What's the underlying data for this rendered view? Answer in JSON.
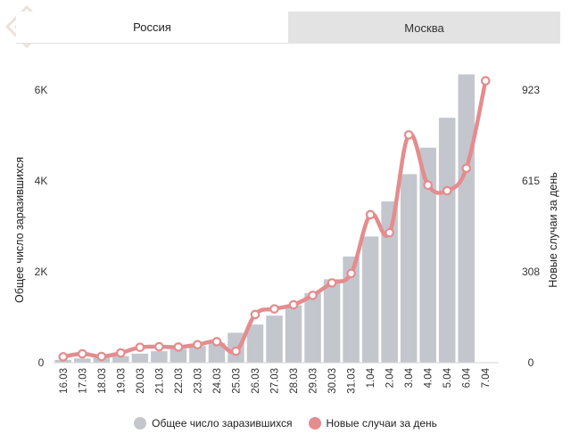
{
  "tabs": [
    {
      "label": "Россия",
      "active": true
    },
    {
      "label": "Москва",
      "active": false
    }
  ],
  "colors": {
    "bars": "#c4c6cd",
    "line": "#e48c8e",
    "point_fill": "#ffffff"
  },
  "chart_data": {
    "type": "bar+line",
    "categories": [
      "16.03",
      "17.03",
      "18.03",
      "19.03",
      "20.03",
      "21.03",
      "22.03",
      "23.03",
      "24.03",
      "25.03",
      "26.03",
      "27.03",
      "28.03",
      "29.03",
      "30.03",
      "31.03",
      "1.04",
      "2.04",
      "3.04",
      "4.04",
      "5.04",
      "6.04",
      "7.04"
    ],
    "series": [
      {
        "name": "Общее число заразившихся",
        "type": "bar",
        "axis": "left",
        "values": [
          63,
          93,
          114,
          147,
          199,
          253,
          306,
          367,
          438,
          658,
          840,
          1036,
          1264,
          1534,
          1836,
          2337,
          2777,
          3548,
          4149,
          4731,
          5389,
          6343,
          null
        ]
      },
      {
        "name": "Новые случаи за день",
        "type": "line",
        "axis": "right",
        "values": [
          20,
          30,
          21,
          33,
          52,
          54,
          53,
          61,
          71,
          39,
          163,
          182,
          196,
          228,
          270,
          302,
          501,
          440,
          771,
          601,
          582,
          658,
          954
        ]
      }
    ],
    "left_axis": {
      "title": "Общее число заразившихся",
      "ticks": [
        "0",
        "2K",
        "4K",
        "6K"
      ],
      "ylim": [
        0,
        6000
      ]
    },
    "right_axis": {
      "title": "Новые случаи за день",
      "ticks": [
        "0",
        "308",
        "615",
        "923"
      ],
      "ylim": [
        0,
        923
      ]
    }
  }
}
